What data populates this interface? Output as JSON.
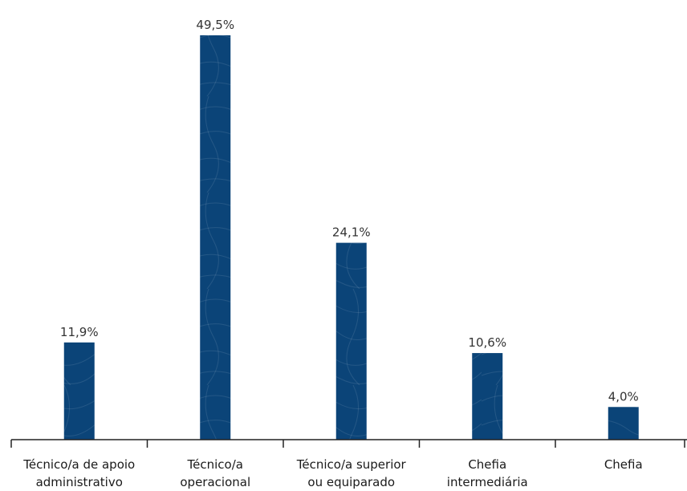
{
  "chart_data": {
    "type": "bar",
    "categories": [
      [
        "Técnico/a de apoio",
        "administrativo"
      ],
      [
        "Técnico/a",
        "operacional"
      ],
      [
        "Técnico/a superior",
        "ou equiparado"
      ],
      [
        "Chefia",
        "intermediária"
      ],
      [
        "Chefia"
      ]
    ],
    "values": [
      11.9,
      49.5,
      24.1,
      10.6,
      4.0
    ],
    "value_labels": [
      "11,9%",
      "49,5%",
      "24,1%",
      "10,6%",
      "4,0%"
    ],
    "unit": "%",
    "ylim": [
      0,
      49.5
    ],
    "grid": false,
    "legend": "none",
    "bar_color": "#0b4478"
  }
}
